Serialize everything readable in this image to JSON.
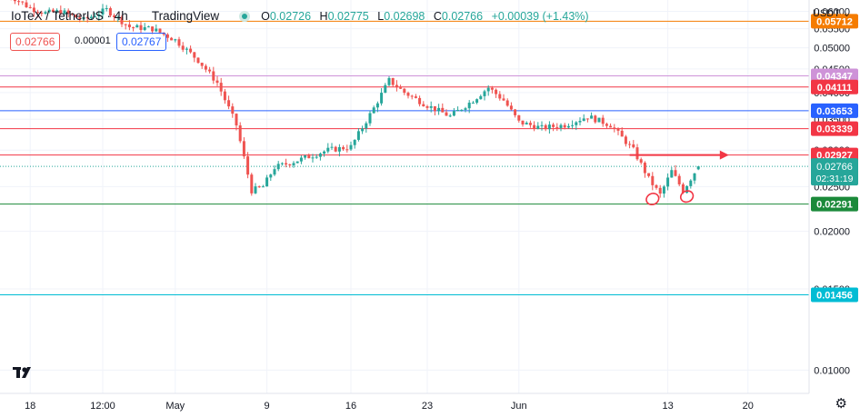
{
  "header": {
    "symbol": "IoTeX / TetherUS · 4h",
    "provider": "TradingView",
    "ohlc": [
      {
        "key": "O",
        "value": "0.02726"
      },
      {
        "key": "H",
        "value": "0.02775"
      },
      {
        "key": "L",
        "value": "0.02698"
      },
      {
        "key": "C",
        "value": "0.02766"
      }
    ],
    "change": "+0.00039 (+1.43%)",
    "sell_price": "0.02766",
    "spread": "0.00001",
    "buy_price": "0.02767"
  },
  "axis": {
    "currency": "USDT",
    "countdown": "02:31:19"
  },
  "colors": {
    "up": "#26a69a",
    "down": "#ef5350",
    "grid": "#f0f3fa"
  },
  "chart_data": {
    "type": "candlestick",
    "title": "IoTeX / TetherUS · 4h",
    "y_scale": "log",
    "ylim": [
      0.0089,
      0.0635
    ],
    "y_ticks": [
      0.06,
      0.055,
      0.05,
      0.045,
      0.04,
      0.035,
      0.03,
      0.025,
      0.02,
      0.015,
      0.01
    ],
    "y_tick_labels": [
      "0.06000",
      "0.05500",
      "0.05000",
      "0.04500",
      "0.04000",
      "0.03500",
      "0.03000",
      "0.02500",
      "0.02000",
      "0.01500",
      "0.01000"
    ],
    "x_ticks": [
      "18",
      "12:00",
      "May",
      "9",
      "16",
      "23",
      "Jun",
      "13",
      "20"
    ],
    "last_price": 0.02766,
    "horizontal_levels": [
      {
        "value": 0.05712,
        "label": "0.05712",
        "color": "#f57c00"
      },
      {
        "value": 0.04347,
        "label": "0.04347",
        "color": "#ce93d8"
      },
      {
        "value": 0.04111,
        "label": "0.04111",
        "color": "#f23645"
      },
      {
        "value": 0.03653,
        "label": "0.03653",
        "color": "#2962ff"
      },
      {
        "value": 0.03339,
        "label": "0.03339",
        "color": "#f23645"
      },
      {
        "value": 0.02927,
        "label": "0.02927",
        "color": "#f23645"
      },
      {
        "value": 0.02291,
        "label": "0.02291",
        "color": "#1b8a3a"
      },
      {
        "value": 0.01456,
        "label": "0.01456",
        "color": "#00bcd4"
      }
    ],
    "price_path": [
      {
        "i": 0,
        "v": 0.0655
      },
      {
        "i": 6,
        "v": 0.061
      },
      {
        "i": 10,
        "v": 0.0595
      },
      {
        "i": 14,
        "v": 0.06
      },
      {
        "i": 20,
        "v": 0.0575
      },
      {
        "i": 26,
        "v": 0.0605
      },
      {
        "i": 32,
        "v": 0.0555
      },
      {
        "i": 38,
        "v": 0.055
      },
      {
        "i": 44,
        "v": 0.052
      },
      {
        "i": 50,
        "v": 0.047
      },
      {
        "i": 55,
        "v": 0.042
      },
      {
        "i": 60,
        "v": 0.034
      },
      {
        "i": 64,
        "v": 0.0245
      },
      {
        "i": 67,
        "v": 0.025
      },
      {
        "i": 70,
        "v": 0.0275
      },
      {
        "i": 76,
        "v": 0.0285
      },
      {
        "i": 84,
        "v": 0.03
      },
      {
        "i": 90,
        "v": 0.0305
      },
      {
        "i": 96,
        "v": 0.037
      },
      {
        "i": 100,
        "v": 0.0425
      },
      {
        "i": 104,
        "v": 0.04
      },
      {
        "i": 110,
        "v": 0.0375
      },
      {
        "i": 116,
        "v": 0.0355
      },
      {
        "i": 122,
        "v": 0.0385
      },
      {
        "i": 126,
        "v": 0.041
      },
      {
        "i": 130,
        "v": 0.0385
      },
      {
        "i": 134,
        "v": 0.0345
      },
      {
        "i": 140,
        "v": 0.0335
      },
      {
        "i": 146,
        "v": 0.034
      },
      {
        "i": 152,
        "v": 0.0355
      },
      {
        "i": 158,
        "v": 0.034
      },
      {
        "i": 164,
        "v": 0.03
      },
      {
        "i": 168,
        "v": 0.026
      },
      {
        "i": 171,
        "v": 0.024
      },
      {
        "i": 174,
        "v": 0.027
      },
      {
        "i": 177,
        "v": 0.0245
      },
      {
        "i": 181,
        "v": 0.02766
      }
    ],
    "annotations": [
      {
        "type": "arrow",
        "value": 0.02927,
        "from_i": 163,
        "to_i": 189,
        "color": "#f23645"
      },
      {
        "type": "ellipse",
        "value": 0.0235,
        "at_i": 169,
        "color": "#f23645"
      },
      {
        "type": "ellipse",
        "value": 0.0238,
        "at_i": 178,
        "color": "#f23645"
      }
    ]
  }
}
